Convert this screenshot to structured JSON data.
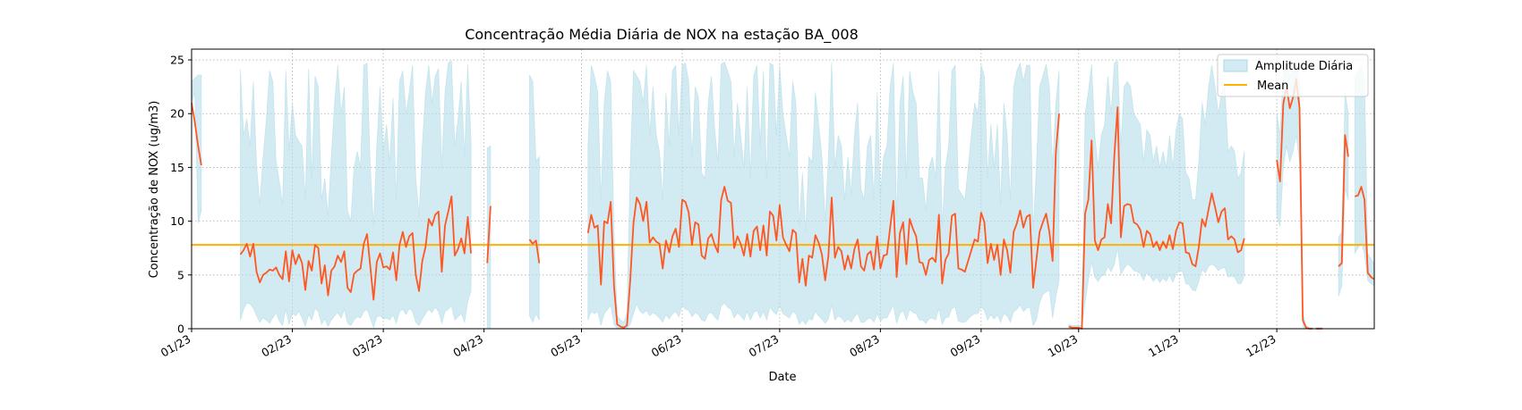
{
  "chart_data": {
    "type": "line",
    "title": "Concentração Média Diária de NOX na estação BA_008",
    "xlabel": "Date",
    "ylabel": "Concentração de NOX (ug/m3)",
    "xlim": [
      "2023-01-01",
      "2023-12-31"
    ],
    "ylim": [
      0,
      26
    ],
    "yticks": [
      0,
      5,
      10,
      15,
      20,
      25
    ],
    "xticks": [
      {
        "date": "2023-01-01",
        "label": "01/23"
      },
      {
        "date": "2023-02-01",
        "label": "02/23"
      },
      {
        "date": "2023-03-01",
        "label": "03/23"
      },
      {
        "date": "2023-04-01",
        "label": "04/23"
      },
      {
        "date": "2023-05-01",
        "label": "05/23"
      },
      {
        "date": "2023-06-01",
        "label": "06/23"
      },
      {
        "date": "2023-07-01",
        "label": "07/23"
      },
      {
        "date": "2023-08-01",
        "label": "08/23"
      },
      {
        "date": "2023-09-01",
        "label": "09/23"
      },
      {
        "date": "2023-10-01",
        "label": "10/23"
      },
      {
        "date": "2023-11-01",
        "label": "11/23"
      },
      {
        "date": "2023-12-01",
        "label": "12/23"
      }
    ],
    "grid": true,
    "legend": {
      "placement": "upper-right",
      "entries": [
        {
          "label": "Amplitude Diária",
          "kind": "band",
          "color": "#add8e6"
        },
        {
          "label": "Mean",
          "kind": "line",
          "color": "#ffb000"
        }
      ]
    },
    "mean_value": 7.8,
    "colors": {
      "line": "#ff5722",
      "band": "#add8e6",
      "mean": "#ffb000"
    },
    "daily_mean_segments": [
      {
        "start": "2023-01-01",
        "values": [
          21.0,
          19.2,
          17.0,
          15.2
        ]
      },
      {
        "start": "2023-01-16",
        "values": [
          6.9,
          7.3,
          7.9,
          6.7,
          7.9,
          5.3,
          4.3,
          5.0,
          5.2,
          5.5,
          5.4,
          5.7,
          5.0,
          4.6,
          7.2,
          4.4,
          7.3,
          6.0,
          6.9,
          6.1,
          3.6,
          6.3,
          5.4,
          7.8,
          7.5,
          4.2,
          5.9,
          3.1,
          5.4,
          5.8,
          6.8,
          6.2,
          7.2,
          3.8,
          3.4,
          5.1,
          5.4,
          5.6,
          7.9,
          8.8,
          5.8,
          2.7,
          6.2,
          7.0,
          5.7,
          5.8,
          5.5,
          7.1,
          4.5,
          7.8,
          9.0,
          7.6,
          8.6,
          8.9,
          5.0,
          3.5,
          6.3,
          7.6,
          10.2,
          9.6,
          10.6,
          10.9,
          5.3,
          9.6,
          10.9,
          12.3,
          6.8,
          7.4,
          8.4,
          7.0,
          10.4,
          7.0
        ]
      },
      {
        "start": "2023-04-02",
        "values": [
          6.1,
          11.4
        ]
      },
      {
        "start": "2023-04-15",
        "values": [
          8.3,
          7.9,
          8.2,
          6.1
        ]
      },
      {
        "start": "2023-05-03",
        "values": [
          8.9,
          10.6,
          9.4,
          9.6,
          4.1,
          10.0,
          9.8,
          11.8,
          4.0,
          0.4,
          0.2,
          0.1,
          0.3,
          4.5,
          9.8,
          12.2,
          11.6,
          10.0,
          11.8,
          8.0,
          8.5,
          8.1,
          7.9,
          5.6,
          8.2,
          7.1,
          8.6,
          9.3,
          7.6,
          12.0,
          11.8,
          10.8,
          7.8,
          9.9,
          9.7,
          6.8,
          6.5,
          8.4,
          8.8,
          7.8,
          7.1,
          12.0,
          13.2,
          11.9,
          11.7,
          7.5,
          8.6,
          7.9,
          6.8,
          8.8,
          6.7,
          9.1,
          9.5,
          7.3,
          9.6,
          6.8,
          10.9,
          10.5,
          8.2,
          11.5,
          8.5,
          7.8,
          7.2,
          9.2,
          8.9,
          4.3,
          6.5,
          4.0,
          6.8,
          6.6,
          8.7,
          8.0,
          6.9,
          4.5,
          6.8,
          12.2,
          6.6,
          7.6,
          7.2,
          5.5,
          6.8,
          5.6,
          7.4,
          8.3,
          5.8,
          5.4,
          6.9,
          7.2,
          5.5,
          8.6,
          5.6,
          6.8,
          6.9,
          9.4,
          11.9,
          4.8,
          8.9,
          9.9,
          6.0,
          10.2,
          9.3,
          8.6,
          6.2,
          6.1,
          5.0,
          6.4,
          6.6,
          6.2,
          10.6,
          4.2,
          6.4,
          7.0,
          10.5,
          10.7,
          5.6,
          5.5,
          5.3,
          6.3,
          7.3,
          8.3,
          8.1,
          10.8,
          9.9,
          6.1,
          7.9,
          6.4,
          7.8,
          5.0,
          8.3,
          7.3,
          5.2,
          9.0,
          9.8,
          11.0,
          9.4,
          10.4,
          10.6,
          3.8,
          6.4,
          9.0,
          9.9,
          10.7,
          9.0,
          6.3,
          16.4,
          20.0
        ]
      },
      {
        "start": "2023-09-28",
        "values": [
          0.2,
          0.1,
          0.1,
          0.1,
          0.0,
          10.7,
          12.0,
          17.5,
          8.2,
          7.3,
          8.3,
          8.5,
          11.6,
          9.8,
          16.1,
          20.6,
          8.5,
          11.4,
          11.6,
          11.5,
          9.9,
          9.7,
          9.2,
          7.6,
          9.1,
          8.8,
          7.6,
          8.1,
          7.3,
          8.1,
          7.5,
          8.7,
          7.4,
          9.1,
          9.9,
          9.8,
          7.1,
          7.0,
          6.0,
          5.8,
          7.6,
          10.2,
          9.5,
          11.1,
          12.6,
          11.3,
          9.9,
          10.9,
          11.2,
          8.3,
          8.6,
          8.3,
          7.1,
          7.3,
          8.4
        ]
      },
      {
        "start": "2023-12-01",
        "values": [
          15.7,
          13.7,
          20.9,
          22.5,
          20.5,
          21.5,
          23.2,
          20.5,
          0.8,
          0.1,
          0.0,
          0.0
        ]
      },
      {
        "start": "2023-12-13",
        "values": [
          0.0,
          0.0,
          0.0
        ]
      },
      {
        "start": "2023-12-20",
        "values": [
          5.8,
          6.1,
          18.0,
          16.0
        ]
      },
      {
        "start": "2023-12-25",
        "values": [
          12.3,
          12.4,
          13.2,
          12.0,
          5.2,
          4.8,
          4.6
        ]
      }
    ],
    "daily_amplitude_segments": [
      {
        "start": "2023-01-01",
        "low": [
          21.0,
          22.0,
          9.8,
          11.0
        ],
        "high": [
          23.0,
          23.3,
          23.6,
          23.6
        ]
      },
      {
        "start": "2023-01-16",
        "low": [
          0.8,
          1.8,
          2.4,
          2.3,
          1.9,
          1.2,
          0.6,
          1.0,
          0.8,
          0.5,
          1.0,
          1.5,
          0.7,
          0.3,
          1.8,
          0.4,
          1.5,
          1.2,
          1.6,
          1.0,
          0.2,
          1.3,
          0.8,
          1.9,
          1.6,
          0.4,
          0.9,
          0.2,
          0.8,
          1.2,
          1.5,
          1.0,
          1.8,
          0.5,
          0.3,
          0.8,
          1.1,
          1.0,
          1.6,
          1.8,
          1.0,
          0.1,
          1.1,
          1.2,
          0.9,
          1.0,
          0.8,
          1.3,
          0.5,
          1.6,
          1.8,
          1.3,
          1.9,
          1.6,
          0.6,
          0.3,
          0.9,
          1.4,
          1.8,
          1.5,
          2.0,
          1.6,
          0.5,
          1.6,
          1.8,
          2.1,
          0.8,
          1.1,
          1.4,
          0.6,
          2.5,
          3.5
        ],
        "high": [
          24.1,
          18.0,
          19.5,
          17.0,
          23.0,
          15.2,
          11.5,
          16.0,
          19.4,
          24.0,
          23.0,
          15.6,
          13.7,
          11.5,
          24.0,
          16.5,
          21.0,
          18.0,
          17.4,
          17.0,
          12.0,
          24.2,
          14.0,
          23.5,
          22.5,
          12.0,
          14.0,
          10.5,
          16.0,
          21.0,
          24.5,
          20.0,
          22.5,
          11.0,
          10.0,
          15.0,
          16.5,
          15.0,
          24.5,
          24.7,
          15.0,
          9.5,
          17.0,
          22.5,
          16.5,
          19.0,
          15.5,
          21.5,
          12.0,
          23.0,
          24.0,
          20.0,
          22.0,
          24.5,
          14.0,
          10.5,
          17.0,
          22.0,
          24.5,
          21.0,
          23.5,
          24.2,
          15.0,
          22.0,
          24.7,
          24.9,
          17.0,
          19.5,
          23.0,
          16.0,
          24.6,
          17.5
        ]
      },
      {
        "start": "2023-04-02",
        "low": [
          0.1,
          0.1
        ],
        "high": [
          16.8,
          17.0
        ]
      },
      {
        "start": "2023-04-15",
        "low": [
          1.2,
          0.6,
          1.4,
          0.8
        ],
        "high": [
          23.6,
          23.0,
          15.6,
          16.0
        ]
      },
      {
        "start": "2023-05-03",
        "low": [
          0.8,
          1.6,
          1.4,
          1.6,
          0.3,
          1.4,
          1.8,
          2.2,
          0.4,
          0.0,
          0.0,
          0.0,
          0.0,
          0.4,
          1.4,
          2.3,
          1.6,
          1.4,
          1.7,
          1.2,
          1.5,
          1.3,
          1.0,
          0.6,
          1.3,
          0.9,
          1.4,
          1.6,
          1.1,
          2.2,
          1.8,
          1.7,
          1.1,
          1.5,
          1.3,
          0.8,
          0.7,
          1.4,
          1.5,
          1.1,
          0.8,
          2.1,
          2.4,
          2.0,
          1.8,
          1.0,
          1.5,
          1.2,
          0.8,
          1.6,
          0.8,
          1.5,
          1.7,
          1.0,
          1.6,
          0.8,
          2.0,
          1.6,
          1.3,
          2.1,
          1.4,
          1.2,
          1.0,
          1.6,
          1.4,
          0.4,
          0.8,
          0.4,
          0.9,
          0.8,
          1.6,
          1.2,
          0.9,
          0.5,
          0.9,
          2.2,
          0.8,
          1.2,
          1.0,
          0.6,
          0.9,
          0.6,
          1.1,
          1.4,
          0.6,
          0.6,
          0.9,
          1.0,
          0.6,
          1.4,
          0.7,
          1.0,
          1.0,
          1.6,
          2.2,
          0.5,
          1.4,
          1.7,
          0.8,
          1.8,
          1.5,
          1.4,
          0.8,
          0.8,
          0.5,
          0.9,
          1.0,
          0.8,
          1.9,
          0.4,
          1.0,
          1.1,
          1.9,
          2.0,
          0.7,
          0.6,
          0.6,
          0.9,
          1.2,
          1.4,
          1.4,
          2.0,
          1.7,
          0.8,
          1.3,
          0.9,
          1.3,
          0.6,
          1.4,
          1.2,
          0.6,
          1.6,
          1.8,
          2.2,
          1.6,
          1.9,
          2.0,
          0.3,
          0.8,
          2.4,
          3.2,
          3.4,
          3.6,
          1.0,
          3.0,
          4.5
        ],
        "high": [
          17.0,
          24.5,
          23.5,
          22.0,
          12.0,
          21.0,
          24.0,
          23.0,
          9.0,
          1.2,
          0.8,
          0.6,
          1.5,
          15.0,
          24.0,
          23.5,
          23.0,
          21.0,
          24.5,
          18.0,
          22.5,
          18.0,
          16.5,
          12.0,
          22.0,
          17.0,
          24.0,
          24.5,
          18.0,
          24.5,
          24.7,
          23.0,
          16.0,
          22.5,
          21.5,
          14.5,
          14.0,
          21.0,
          23.5,
          18.5,
          15.5,
          24.6,
          24.8,
          24.0,
          23.0,
          16.0,
          21.0,
          18.0,
          15.0,
          22.5,
          14.0,
          23.5,
          24.5,
          17.0,
          24.0,
          14.0,
          24.7,
          24.5,
          18.0,
          24.5,
          20.0,
          18.0,
          16.0,
          23.0,
          21.0,
          9.5,
          14.5,
          9.0,
          16.0,
          15.5,
          22.0,
          19.0,
          16.0,
          10.0,
          16.0,
          24.8,
          15.0,
          18.0,
          17.0,
          12.0,
          16.0,
          12.5,
          18.0,
          21.0,
          13.0,
          12.0,
          17.0,
          18.0,
          12.0,
          22.0,
          12.5,
          16.0,
          17.0,
          22.5,
          24.7,
          10.5,
          21.0,
          23.5,
          14.0,
          24.0,
          22.0,
          21.0,
          14.0,
          14.0,
          11.0,
          15.0,
          16.0,
          14.0,
          24.0,
          9.5,
          15.0,
          17.0,
          24.0,
          24.5,
          13.0,
          12.5,
          12.0,
          15.0,
          18.0,
          21.0,
          20.0,
          24.5,
          23.5,
          14.0,
          19.0,
          15.0,
          19.0,
          11.5,
          21.0,
          18.0,
          12.0,
          22.5,
          24.0,
          24.7,
          23.0,
          24.5,
          24.5,
          9.0,
          15.0,
          22.5,
          23.5,
          24.6,
          22.5,
          15.0,
          21.0,
          24.0
        ]
      },
      {
        "start": "2023-09-28",
        "low": [
          0.0,
          0.0,
          0.0,
          0.0,
          0.0,
          2.5,
          4.5,
          6.2,
          4.8,
          4.4,
          4.9,
          5.0,
          5.8,
          5.3,
          6.0,
          7.5,
          5.0,
          5.6,
          6.0,
          5.8,
          5.4,
          5.3,
          5.1,
          4.5,
          5.2,
          4.9,
          4.4,
          4.8,
          4.3,
          4.7,
          4.4,
          5.0,
          4.3,
          5.1,
          5.4,
          5.3,
          4.2,
          4.1,
          3.6,
          3.5,
          4.4,
          5.5,
          5.2,
          5.8,
          6.0,
          5.8,
          5.4,
          5.6,
          5.7,
          4.8,
          4.9,
          4.8,
          4.2,
          4.2,
          4.9
        ],
        "high": [
          0.4,
          0.3,
          0.3,
          0.3,
          0.3,
          20.0,
          22.0,
          24.6,
          18.0,
          15.0,
          18.0,
          19.0,
          23.5,
          20.0,
          24.7,
          24.9,
          17.0,
          22.5,
          23.0,
          22.5,
          20.0,
          19.5,
          19.0,
          15.5,
          18.5,
          18.0,
          15.5,
          17.0,
          15.0,
          16.5,
          15.0,
          18.0,
          15.0,
          18.5,
          20.0,
          19.5,
          14.5,
          14.0,
          12.0,
          12.0,
          15.5,
          21.0,
          19.0,
          22.5,
          24.5,
          22.5,
          20.0,
          22.0,
          22.5,
          16.5,
          17.0,
          16.5,
          14.0,
          14.5,
          16.5
        ]
      },
      {
        "start": "2023-12-01",
        "low": [
          10.5,
          9.5,
          15.0,
          17.0,
          15.5,
          16.5,
          18.0,
          15.5,
          0.2,
          0.0,
          0.0,
          0.0
        ],
        "high": [
          20.0,
          18.0,
          24.0,
          24.8,
          23.5,
          24.0,
          24.9,
          23.0,
          1.5,
          0.3,
          0.1,
          0.1
        ]
      },
      {
        "start": "2023-12-13",
        "low": [
          0.0,
          0.0,
          0.0
        ],
        "high": [
          0.1,
          0.1,
          0.1
        ]
      },
      {
        "start": "2023-12-20",
        "low": [
          3.0,
          4.0,
          13.0,
          12.0
        ],
        "high": [
          8.5,
          9.0,
          22.0,
          20.0
        ]
      },
      {
        "start": "2023-12-25",
        "low": [
          7.0,
          7.5,
          8.0,
          7.0,
          4.5,
          4.2,
          4.0
        ],
        "high": [
          23.5,
          24.0,
          24.5,
          23.0,
          7.0,
          6.5,
          6.0
        ]
      }
    ]
  }
}
